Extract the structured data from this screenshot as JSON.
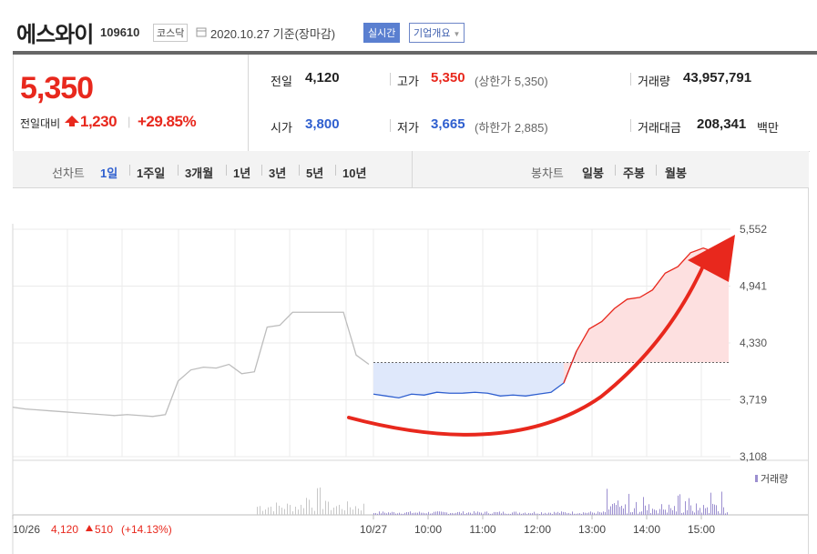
{
  "header": {
    "name": "에스와이",
    "code": "109610",
    "market": "코스닥",
    "date": "2020.10.27 기준(장마감)",
    "realtime_label": "실시간",
    "overview_label": "기업개요"
  },
  "summary": {
    "price": "5,350",
    "change_label": "전일대비",
    "change_value": "1,230",
    "change_pct": "+29.85%",
    "prev_label": "전일",
    "prev_value": "4,120",
    "high_label": "고가",
    "high_value": "5,350",
    "high_sub": "(상한가 5,350)",
    "volume_label": "거래량",
    "volume_value": "43,957,791",
    "open_label": "시가",
    "open_value": "3,800",
    "low_label": "저가",
    "low_value": "3,665",
    "low_sub": "(하한가 2,885)",
    "amount_label": "거래대금",
    "amount_value": "208,341",
    "amount_unit": "백만"
  },
  "periods": {
    "line_label": "선차트",
    "items": [
      "1일",
      "1주일",
      "3개월",
      "1년",
      "3년",
      "5년",
      "10년"
    ],
    "active": "1일",
    "candle_label": "봉차트",
    "candle_items": [
      "일봉",
      "주봉",
      "월봉"
    ]
  },
  "colors": {
    "up": "#e8281d",
    "down": "#2f5fcf",
    "volume": "#9c8fd0"
  },
  "chart_data": {
    "type": "line",
    "y_ticks": [
      "5,552",
      "4,941",
      "4,330",
      "3,719",
      "3,108"
    ],
    "ylim": [
      3108,
      5552
    ],
    "reference_price": 4120,
    "volume_label": "거래량",
    "x_labels": [
      "10/26",
      "10/27",
      "10:00",
      "11:00",
      "12:00",
      "13:00",
      "14:00",
      "15:00"
    ],
    "prev_day_summary": {
      "text": "4,120",
      "change": "510",
      "pct": "(+14.13%)"
    },
    "annotation": "red curved arrow pointing to the up-right",
    "series": [
      {
        "values": [
          3640,
          3620,
          3610,
          3600,
          3590,
          3580,
          3570,
          3560,
          3550,
          3560,
          3550,
          3540,
          3560,
          3920,
          4040,
          4070,
          4060,
          4100,
          4000,
          4020,
          4500,
          4520,
          4660,
          4660,
          4660,
          4660,
          4660,
          4200,
          4100
        ]
      },
      {
        "values": [
          3780,
          3760,
          3740,
          3780,
          3770,
          3800,
          3790,
          3790,
          3800,
          3790,
          3760,
          3770,
          3760,
          3780,
          3800,
          3900,
          4240,
          4480,
          4560,
          4700,
          4800,
          4820,
          4900,
          5080,
          5150,
          5300,
          5350,
          5300,
          5340
        ]
      }
    ]
  }
}
